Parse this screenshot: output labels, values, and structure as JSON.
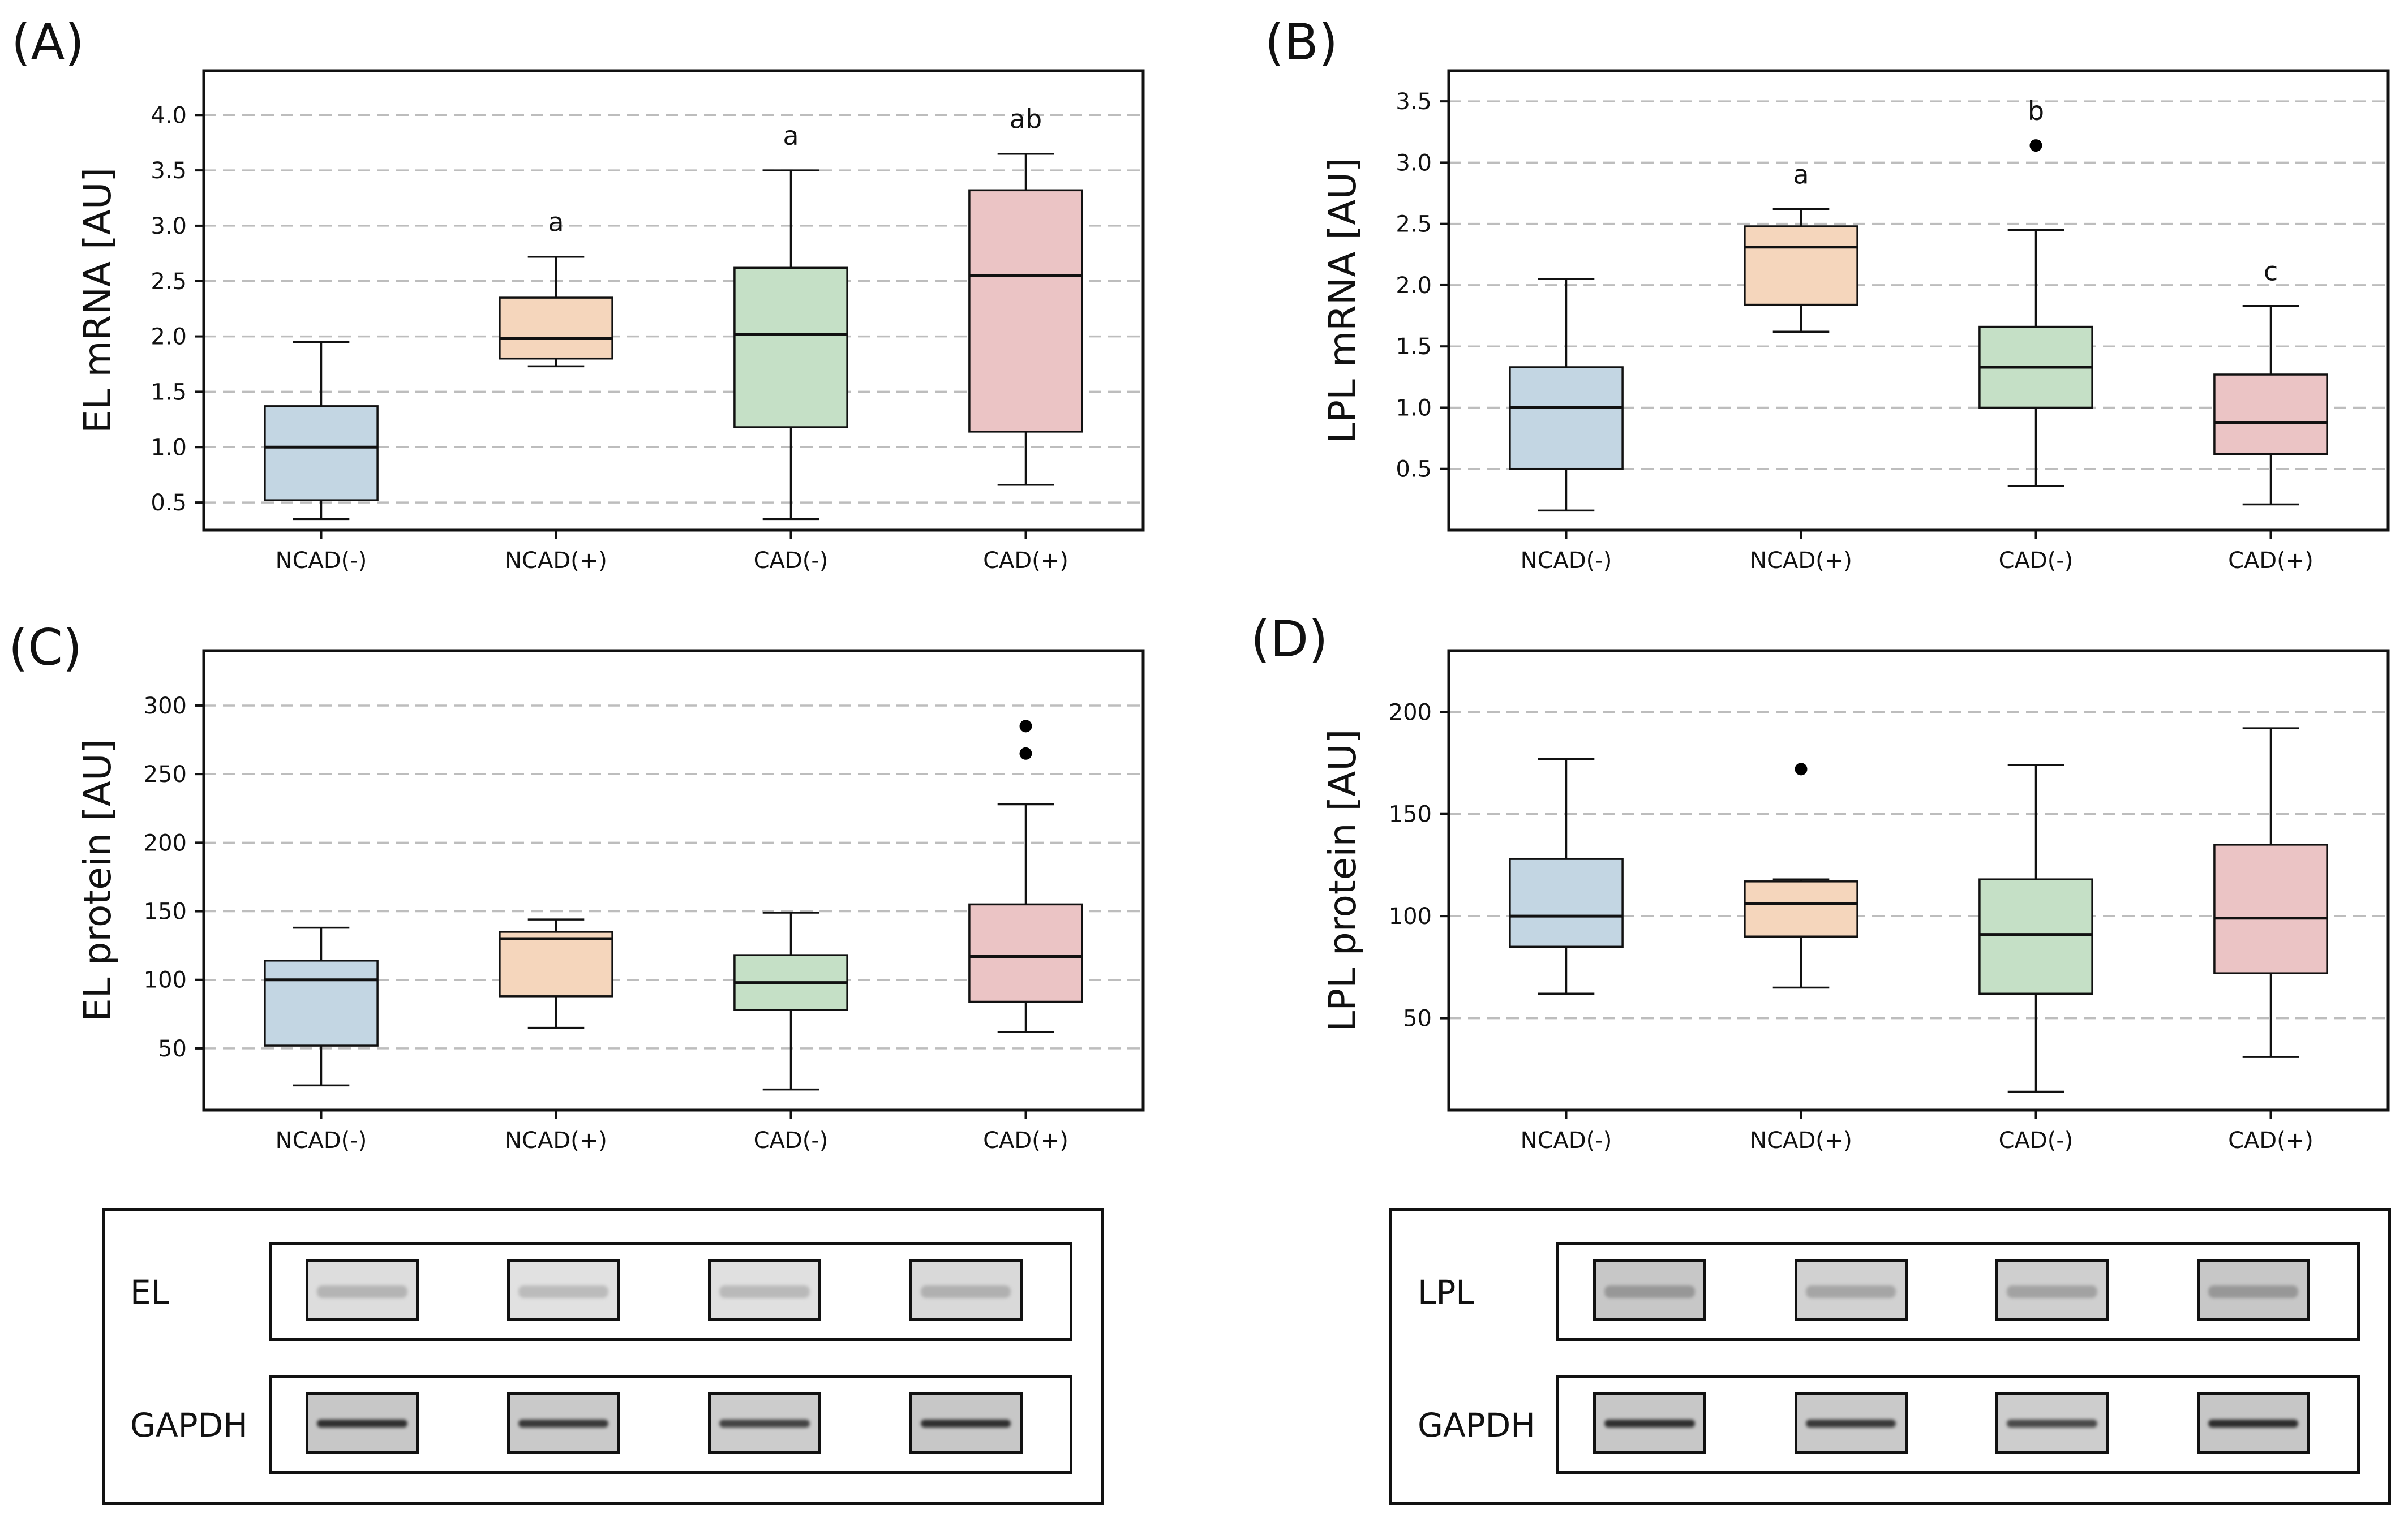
{
  "colors": {
    "groups": [
      "#c3d6e3",
      "#f5d6bc",
      "#c5e0c6",
      "#ebc4c5"
    ],
    "grid": "#bdbdbd",
    "axis": "#111111"
  },
  "chart_data": [
    {
      "id": "A",
      "panel_label": "(A)",
      "type": "box",
      "ylabel": "EL mRNA [AU]",
      "categories": [
        "NCAD(-)",
        "NCAD(+)",
        "CAD(-)",
        "CAD(+)"
      ],
      "ylim": [
        0.25,
        4.4
      ],
      "yticks": [
        0.5,
        1.0,
        1.5,
        2.0,
        2.5,
        3.0,
        3.5,
        4.0
      ],
      "ytick_labels": [
        "0.5",
        "1.0",
        "1.5",
        "2.0",
        "2.5",
        "3.0",
        "3.5",
        "4.0"
      ],
      "grid": true,
      "boxes": [
        {
          "whislo": 0.35,
          "q1": 0.52,
          "med": 1.0,
          "q3": 1.37,
          "whishi": 1.95,
          "fliers": [],
          "sig": ""
        },
        {
          "whislo": 1.73,
          "q1": 1.8,
          "med": 1.98,
          "q3": 2.35,
          "whishi": 2.72,
          "fliers": [],
          "sig": "a"
        },
        {
          "whislo": 0.35,
          "q1": 1.18,
          "med": 2.02,
          "q3": 2.62,
          "whishi": 3.5,
          "fliers": [],
          "sig": "a"
        },
        {
          "whislo": 0.66,
          "q1": 1.14,
          "med": 2.55,
          "q3": 3.32,
          "whishi": 3.65,
          "fliers": [],
          "sig": "ab"
        }
      ]
    },
    {
      "id": "B",
      "panel_label": "(B)",
      "type": "box",
      "ylabel": "LPL mRNA [AU]",
      "categories": [
        "NCAD(-)",
        "NCAD(+)",
        "CAD(-)",
        "CAD(+)"
      ],
      "ylim": [
        0.0,
        3.75
      ],
      "yticks": [
        0.5,
        1.0,
        1.5,
        2.0,
        2.5,
        3.0,
        3.5
      ],
      "ytick_labels": [
        "0.5",
        "1.0",
        "1.5",
        "2.0",
        "2.5",
        "3.0",
        "3.5"
      ],
      "grid": true,
      "boxes": [
        {
          "whislo": 0.16,
          "q1": 0.5,
          "med": 1.0,
          "q3": 1.33,
          "whishi": 2.05,
          "fliers": [],
          "sig": ""
        },
        {
          "whislo": 1.62,
          "q1": 1.84,
          "med": 2.31,
          "q3": 2.48,
          "whishi": 2.62,
          "fliers": [],
          "sig": "a"
        },
        {
          "whislo": 0.36,
          "q1": 1.0,
          "med": 1.33,
          "q3": 1.66,
          "whishi": 2.45,
          "fliers": [
            3.14
          ],
          "sig": "b"
        },
        {
          "whislo": 0.21,
          "q1": 0.62,
          "med": 0.88,
          "q3": 1.27,
          "whishi": 1.83,
          "fliers": [],
          "sig": "c"
        }
      ]
    },
    {
      "id": "C",
      "panel_label": "(C)",
      "type": "box",
      "ylabel": "EL protein [AU]",
      "categories": [
        "NCAD(-)",
        "NCAD(+)",
        "CAD(-)",
        "CAD(+)"
      ],
      "ylim": [
        5,
        340
      ],
      "yticks": [
        50,
        100,
        150,
        200,
        250,
        300
      ],
      "ytick_labels": [
        "50",
        "100",
        "150",
        "200",
        "250",
        "300"
      ],
      "grid": true,
      "boxes": [
        {
          "whislo": 23,
          "q1": 52,
          "med": 100,
          "q3": 114,
          "whishi": 138,
          "fliers": [],
          "sig": ""
        },
        {
          "whislo": 65,
          "q1": 88,
          "med": 130,
          "q3": 135,
          "whishi": 144,
          "fliers": [],
          "sig": ""
        },
        {
          "whislo": 20,
          "q1": 78,
          "med": 98,
          "q3": 118,
          "whishi": 149,
          "fliers": [],
          "sig": ""
        },
        {
          "whislo": 62,
          "q1": 84,
          "med": 117,
          "q3": 155,
          "whishi": 228,
          "fliers": [
            265,
            285
          ],
          "sig": ""
        }
      ]
    },
    {
      "id": "D",
      "panel_label": "(D)",
      "type": "box",
      "ylabel": "LPL protein [AU]",
      "categories": [
        "NCAD(-)",
        "NCAD(+)",
        "CAD(-)",
        "CAD(+)"
      ],
      "ylim": [
        5,
        230
      ],
      "yticks": [
        50,
        100,
        150,
        200
      ],
      "ytick_labels": [
        "50",
        "100",
        "150",
        "200"
      ],
      "grid": true,
      "boxes": [
        {
          "whislo": 62,
          "q1": 85,
          "med": 100,
          "q3": 128,
          "whishi": 177,
          "fliers": [],
          "sig": ""
        },
        {
          "whislo": 65,
          "q1": 90,
          "med": 106,
          "q3": 117,
          "whishi": 118,
          "fliers": [
            172
          ],
          "sig": ""
        },
        {
          "whislo": 14,
          "q1": 62,
          "med": 91,
          "q3": 118,
          "whishi": 174,
          "fliers": [],
          "sig": ""
        },
        {
          "whislo": 31,
          "q1": 72,
          "med": 99,
          "q3": 135,
          "whishi": 192,
          "fliers": [],
          "sig": ""
        }
      ]
    }
  ],
  "blots": {
    "left": {
      "target_label": "EL",
      "loading_label": "GAPDH",
      "target_intensity": [
        0.18,
        0.12,
        0.14,
        0.22
      ],
      "loading_intensity": [
        0.9,
        0.85,
        0.78,
        0.9
      ]
    },
    "right": {
      "target_label": "LPL",
      "loading_label": "GAPDH",
      "target_intensity": [
        0.45,
        0.32,
        0.35,
        0.45
      ],
      "loading_intensity": [
        0.9,
        0.85,
        0.75,
        0.92
      ]
    }
  }
}
